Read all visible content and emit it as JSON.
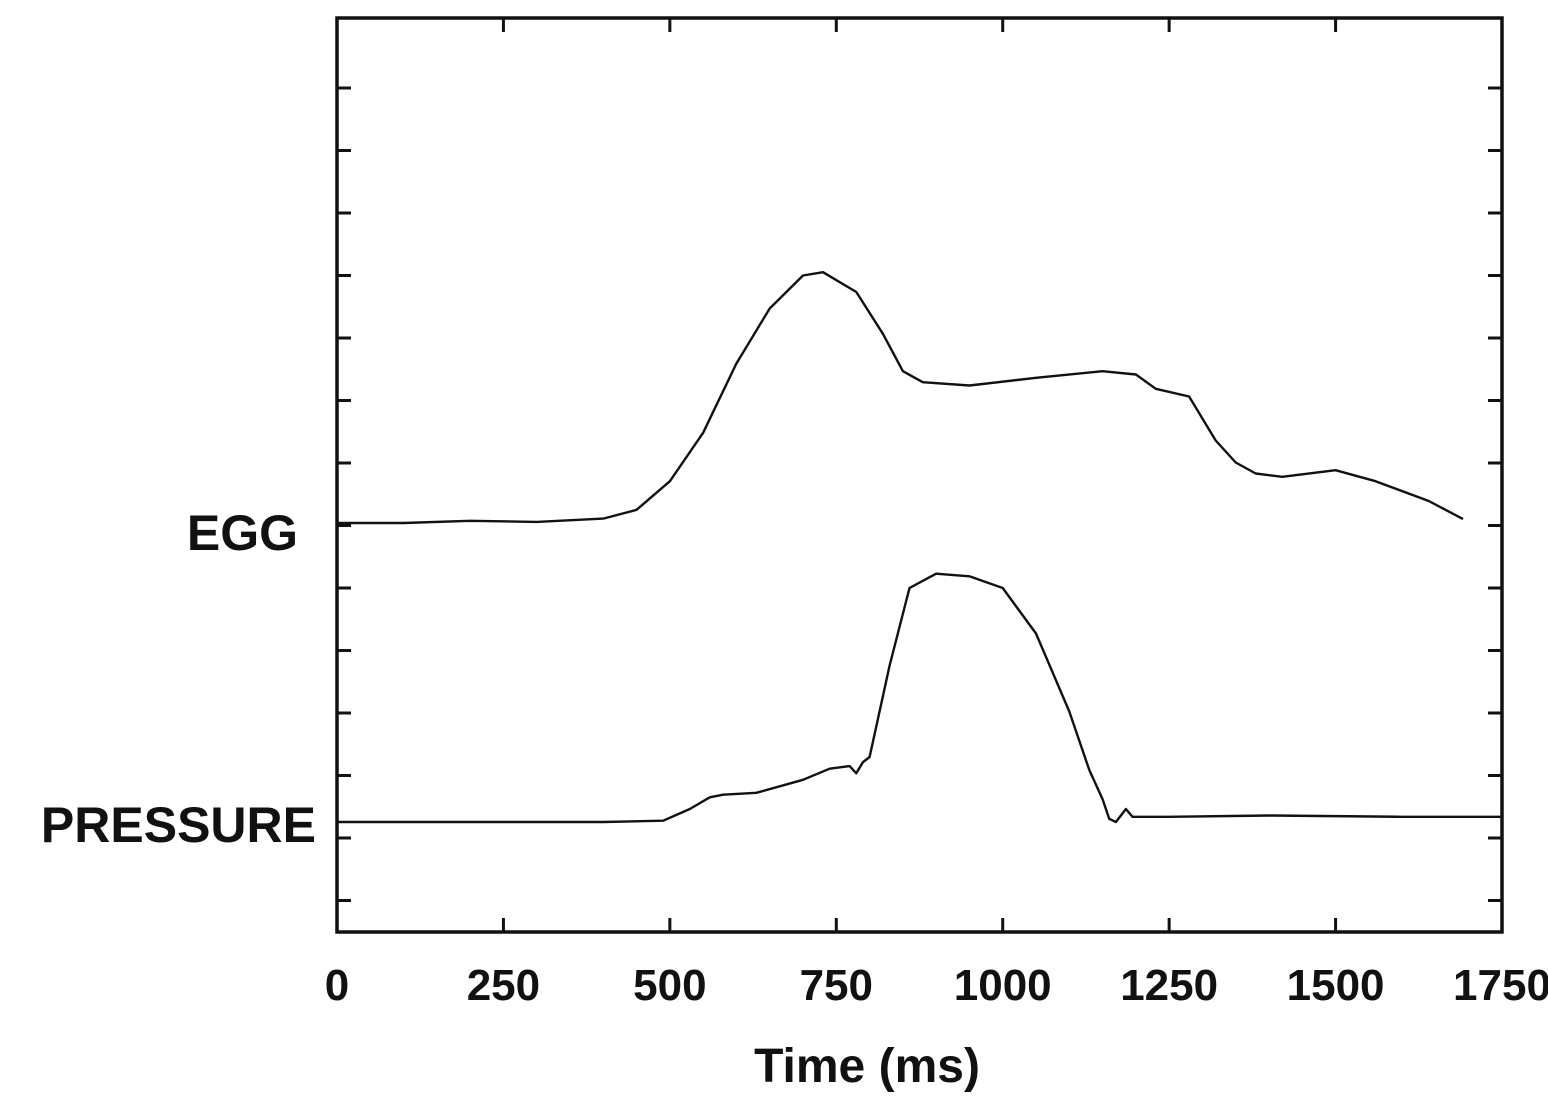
{
  "chart_data": {
    "type": "line",
    "xlabel": "Time (ms)",
    "xlim": [
      0,
      1750
    ],
    "x_ticks": [
      0,
      250,
      500,
      750,
      1000,
      1250,
      1500,
      1750
    ],
    "y_units": "relative (unlabeled)",
    "grid": false,
    "legend": "none",
    "series": [
      {
        "name": "EGG",
        "x": [
          0,
          100,
          200,
          300,
          400,
          450,
          500,
          550,
          600,
          650,
          700,
          730,
          780,
          820,
          850,
          880,
          950,
          1050,
          1150,
          1200,
          1230,
          1280,
          1320,
          1350,
          1380,
          1420,
          1500,
          1560,
          1640,
          1690
        ],
        "y": [
          0,
          0,
          0.02,
          0.01,
          0.04,
          0.12,
          0.38,
          0.82,
          1.45,
          1.95,
          2.25,
          2.28,
          2.1,
          1.72,
          1.38,
          1.28,
          1.25,
          1.32,
          1.38,
          1.35,
          1.22,
          1.15,
          0.75,
          0.55,
          0.45,
          0.42,
          0.48,
          0.38,
          0.2,
          0.04
        ]
      },
      {
        "name": "PRESSURE",
        "x": [
          0,
          100,
          200,
          300,
          400,
          490,
          530,
          560,
          580,
          630,
          700,
          740,
          770,
          780,
          790,
          800,
          830,
          860,
          900,
          950,
          1000,
          1050,
          1100,
          1130,
          1150,
          1160,
          1170,
          1185,
          1195,
          1250,
          1400,
          1600,
          1700,
          1750
        ],
        "y": [
          0,
          0,
          0,
          0,
          0,
          0.02,
          0.2,
          0.38,
          0.42,
          0.45,
          0.65,
          0.82,
          0.86,
          0.75,
          0.92,
          1.0,
          2.4,
          3.6,
          3.82,
          3.78,
          3.6,
          2.9,
          1.7,
          0.8,
          0.35,
          0.05,
          0.0,
          0.2,
          0.08,
          0.08,
          0.1,
          0.08,
          0.08,
          0.08
        ]
      }
    ]
  }
}
